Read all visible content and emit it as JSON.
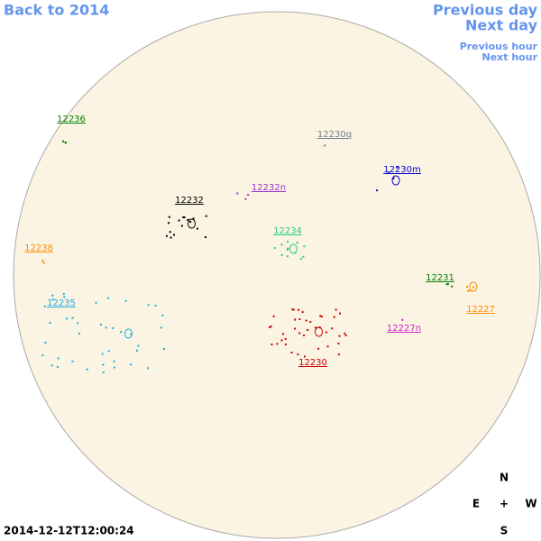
{
  "nav": {
    "back": "Back to 2014",
    "previous_day": "Previous day",
    "next_day": "Next day",
    "previous_hour": "Previous hour",
    "next_hour": "Next hour"
  },
  "regions": [
    {
      "label": "12236",
      "color": "#008000"
    },
    {
      "label": "12230q",
      "color": "#708090"
    },
    {
      "label": "12230m",
      "color": "#0000cc"
    },
    {
      "label": "12232n",
      "color": "#9933cc"
    },
    {
      "label": "12232",
      "color": "#000000"
    },
    {
      "label": "12234",
      "color": "#22cc88"
    },
    {
      "label": "12238",
      "color": "#ff8c00"
    },
    {
      "label": "12231",
      "color": "#008000"
    },
    {
      "label": "12227",
      "color": "#ff8c00"
    },
    {
      "label": "12235",
      "color": "#22aadd"
    },
    {
      "label": "12227n",
      "color": "#cc22cc"
    },
    {
      "label": "12230",
      "color": "#cc0000"
    }
  ],
  "compass": {
    "north": "N",
    "east": "E",
    "center": "+",
    "west": "W",
    "south": "S"
  },
  "timestamp": "2014-12-12T12:00:24"
}
